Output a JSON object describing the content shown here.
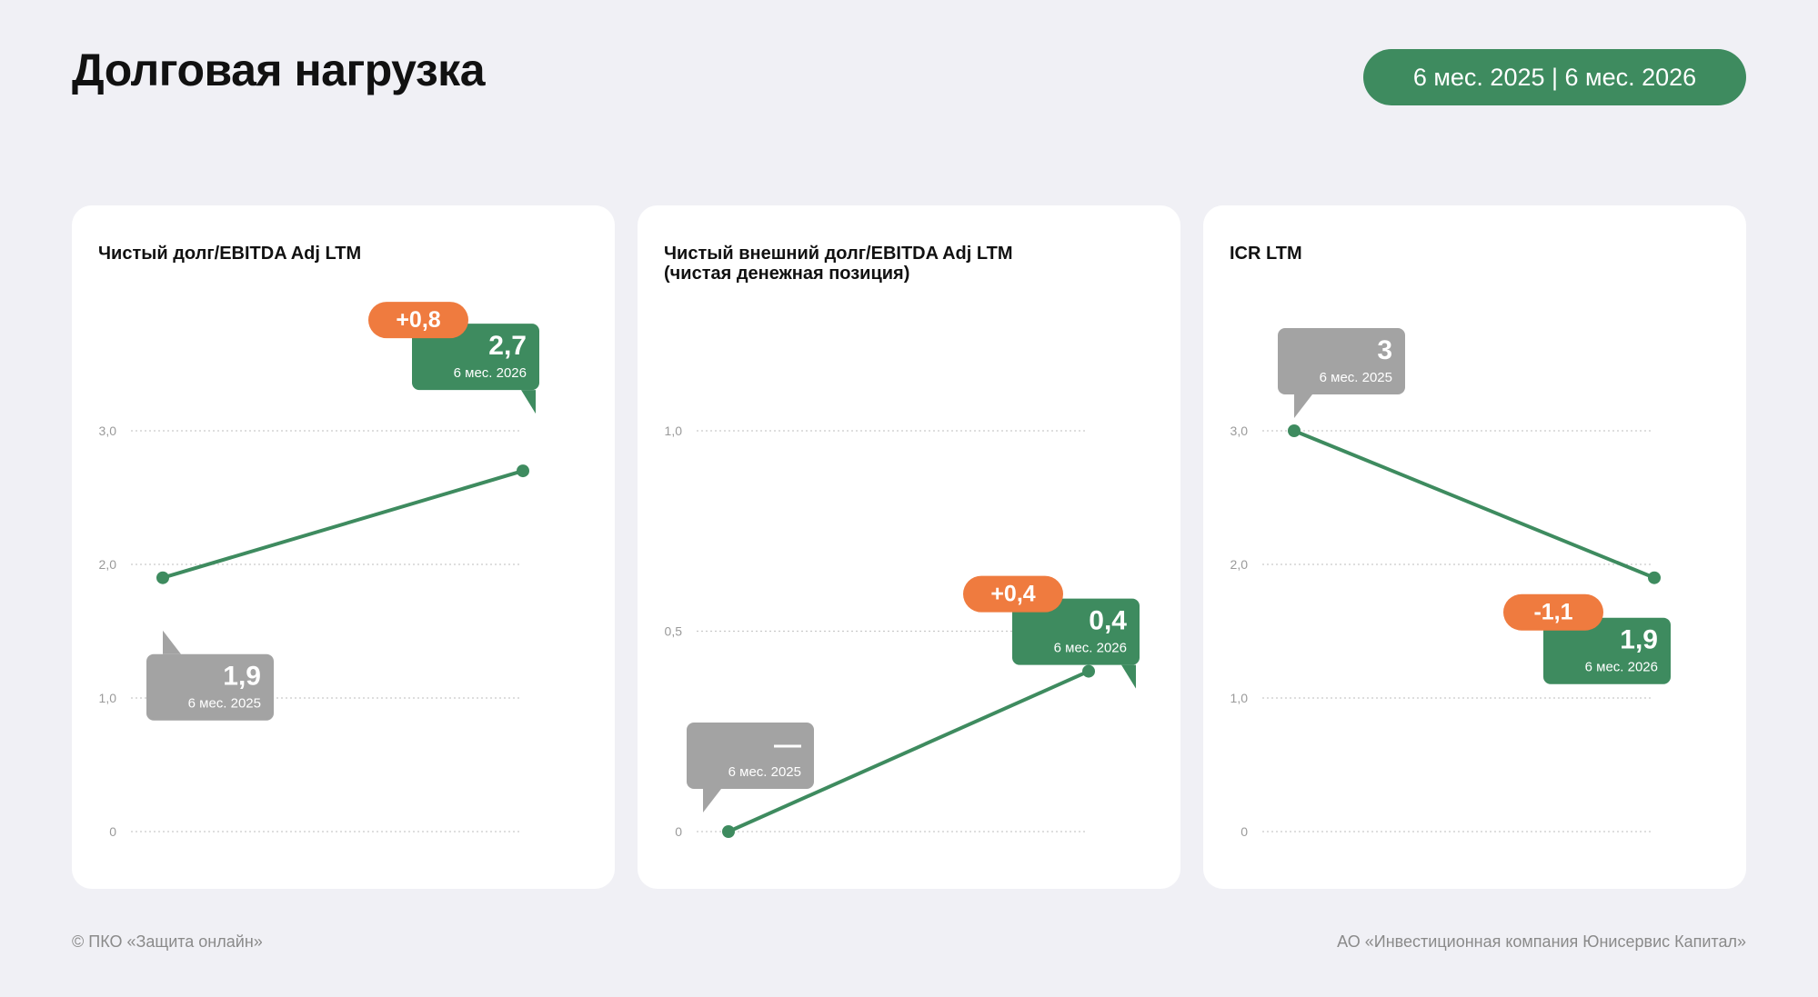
{
  "header": {
    "title": "Долговая нагрузка",
    "period": "6 мес. 2025 | 6 мес. 2026"
  },
  "footer": {
    "left": "© ПКО «Защита онлайн»",
    "right": "АО «Инвестиционная компания Юнисервис Капитал»"
  },
  "colors": {
    "green": "#3e8b5f",
    "orange": "#ef7b3f",
    "gray": "#a3a3a3",
    "background": "#f0f0f5"
  },
  "chart_data": [
    {
      "type": "line",
      "title": "Чистый долг/EBITDA Adj LTM",
      "ylim": [
        0,
        3.0
      ],
      "yticks": [
        "0",
        "1,0",
        "2,0",
        "3,0"
      ],
      "ytick_values": [
        0,
        1,
        2,
        3
      ],
      "grid": true,
      "points": [
        {
          "label": "6 мес. 2025",
          "value": 1.9,
          "display": "1,9"
        },
        {
          "label": "6 мес. 2026",
          "value": 2.7,
          "display": "2,7"
        }
      ],
      "change": "+0,8"
    },
    {
      "type": "line",
      "title": "Чистый внешний долг/EBITDA Adj LTM\n(чистая денежная позиция)",
      "ylim": [
        0,
        1.0
      ],
      "yticks": [
        "0",
        "0,5",
        "1,0"
      ],
      "ytick_values": [
        0,
        0.5,
        1
      ],
      "grid": true,
      "points": [
        {
          "label": "6 мес. 2025",
          "value": 0,
          "display": "—"
        },
        {
          "label": "6 мес. 2026",
          "value": 0.4,
          "display": "0,4"
        }
      ],
      "change": "+0,4"
    },
    {
      "type": "line",
      "title": "ICR LTM",
      "ylim": [
        0,
        3.0
      ],
      "yticks": [
        "0",
        "1,0",
        "2,0",
        "3,0"
      ],
      "ytick_values": [
        0,
        1,
        2,
        3
      ],
      "grid": true,
      "points": [
        {
          "label": "6 мес. 2025",
          "value": 3,
          "display": "3"
        },
        {
          "label": "6 мес. 2026",
          "value": 1.9,
          "display": "1,9"
        }
      ],
      "change": "-1,1"
    }
  ]
}
